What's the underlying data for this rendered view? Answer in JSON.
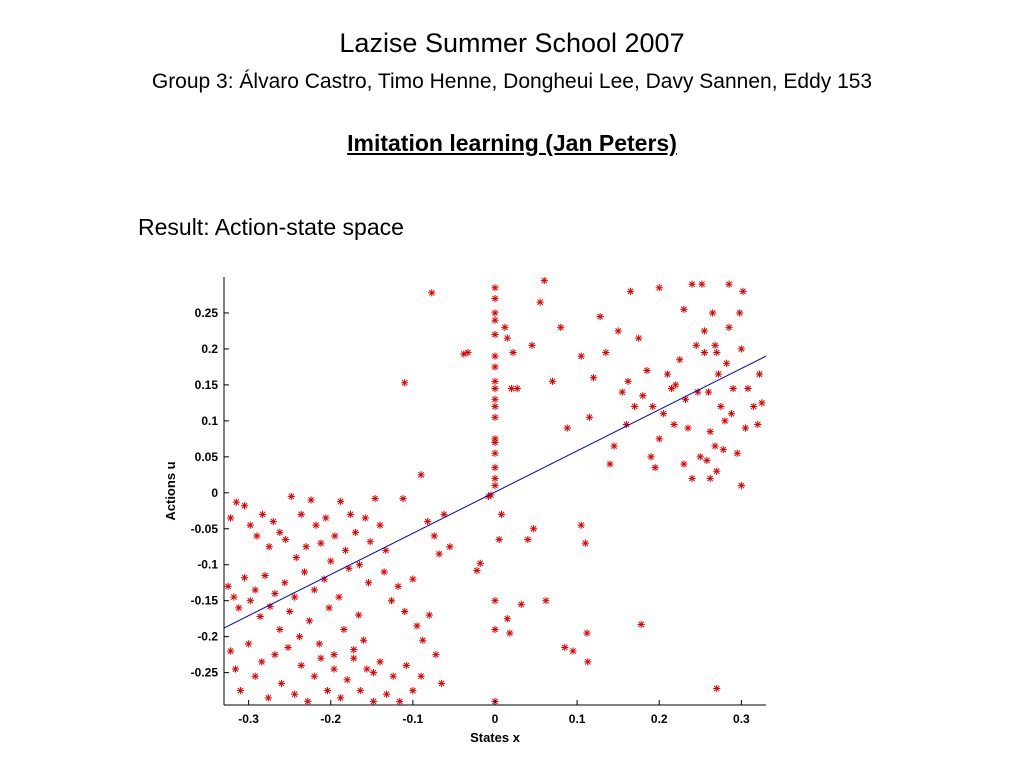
{
  "slide": {
    "title": "Lazise Summer School 2007",
    "subtitle": "Group 3: Álvaro Castro, Timo Henne, Dongheui Lee, Davy Sannen, Eddy 153",
    "heading": "Imitation learning (Jan Peters)",
    "result_label": "Result: Action-state space"
  },
  "chart_data": {
    "type": "scatter",
    "title": "",
    "xlabel": "States x",
    "ylabel": "Actions u",
    "xlim": [
      -0.33,
      0.33
    ],
    "ylim": [
      -0.295,
      0.3
    ],
    "x_ticks": [
      -0.3,
      -0.2,
      -0.1,
      0,
      0.1,
      0.2,
      0.3
    ],
    "x_tick_labels": [
      "-0.3",
      "-0.2",
      "-0.1",
      "0",
      "0.1",
      "0.2",
      "0.3"
    ],
    "y_ticks": [
      -0.25,
      -0.2,
      -0.15,
      -0.1,
      -0.05,
      0,
      0.05,
      0.1,
      0.15,
      0.2,
      0.25
    ],
    "y_tick_labels": [
      "-0.25",
      "-0.2",
      "-0.15",
      "-0.1",
      "-0.05",
      "0",
      "0.05",
      "0.1",
      "0.15",
      "0.2",
      "0.25"
    ],
    "grid": false,
    "colors": {
      "points": "#e00000",
      "fit_line": "#0000cc",
      "axes": "#000000"
    },
    "marker": "asterisk",
    "fit_line": {
      "x": [
        -0.33,
        0.33
      ],
      "y": [
        -0.188,
        0.19
      ]
    },
    "points": [
      [
        -0.322,
        -0.035
      ],
      [
        -0.315,
        -0.013
      ],
      [
        -0.305,
        -0.018
      ],
      [
        -0.298,
        -0.045
      ],
      [
        -0.29,
        -0.06
      ],
      [
        -0.283,
        -0.03
      ],
      [
        -0.275,
        -0.075
      ],
      [
        -0.27,
        -0.04
      ],
      [
        -0.262,
        -0.055
      ],
      [
        -0.255,
        -0.065
      ],
      [
        -0.248,
        -0.005
      ],
      [
        -0.242,
        -0.09
      ],
      [
        -0.236,
        -0.03
      ],
      [
        -0.23,
        -0.075
      ],
      [
        -0.224,
        -0.01
      ],
      [
        -0.218,
        -0.045
      ],
      [
        -0.212,
        -0.07
      ],
      [
        -0.206,
        -0.035
      ],
      [
        -0.2,
        -0.095
      ],
      [
        -0.195,
        -0.06
      ],
      [
        -0.188,
        -0.012
      ],
      [
        -0.182,
        -0.08
      ],
      [
        -0.176,
        -0.03
      ],
      [
        -0.17,
        -0.055
      ],
      [
        -0.165,
        -0.1
      ],
      [
        -0.158,
        -0.035
      ],
      [
        -0.152,
        -0.068
      ],
      [
        -0.146,
        -0.008
      ],
      [
        -0.14,
        -0.045
      ],
      [
        -0.133,
        -0.08
      ],
      [
        -0.325,
        -0.13
      ],
      [
        -0.318,
        -0.145
      ],
      [
        -0.312,
        -0.16
      ],
      [
        -0.305,
        -0.118
      ],
      [
        -0.298,
        -0.15
      ],
      [
        -0.292,
        -0.135
      ],
      [
        -0.286,
        -0.172
      ],
      [
        -0.28,
        -0.115
      ],
      [
        -0.274,
        -0.158
      ],
      [
        -0.268,
        -0.14
      ],
      [
        -0.262,
        -0.19
      ],
      [
        -0.256,
        -0.125
      ],
      [
        -0.25,
        -0.165
      ],
      [
        -0.244,
        -0.145
      ],
      [
        -0.238,
        -0.2
      ],
      [
        -0.232,
        -0.11
      ],
      [
        -0.226,
        -0.178
      ],
      [
        -0.22,
        -0.135
      ],
      [
        -0.214,
        -0.21
      ],
      [
        -0.208,
        -0.12
      ],
      [
        -0.202,
        -0.16
      ],
      [
        -0.196,
        -0.225
      ],
      [
        -0.19,
        -0.145
      ],
      [
        -0.184,
        -0.19
      ],
      [
        -0.178,
        -0.105
      ],
      [
        -0.172,
        -0.23
      ],
      [
        -0.166,
        -0.17
      ],
      [
        -0.16,
        -0.205
      ],
      [
        -0.154,
        -0.125
      ],
      [
        -0.148,
        -0.25
      ],
      [
        -0.322,
        -0.22
      ],
      [
        -0.316,
        -0.245
      ],
      [
        -0.31,
        -0.275
      ],
      [
        -0.3,
        -0.21
      ],
      [
        -0.292,
        -0.255
      ],
      [
        -0.284,
        -0.235
      ],
      [
        -0.276,
        -0.285
      ],
      [
        -0.268,
        -0.225
      ],
      [
        -0.26,
        -0.265
      ],
      [
        -0.252,
        -0.215
      ],
      [
        -0.244,
        -0.28
      ],
      [
        -0.236,
        -0.24
      ],
      [
        -0.228,
        -0.29
      ],
      [
        -0.22,
        -0.255
      ],
      [
        -0.212,
        -0.23
      ],
      [
        -0.204,
        -0.275
      ],
      [
        -0.196,
        -0.245
      ],
      [
        -0.188,
        -0.285
      ],
      [
        -0.18,
        -0.26
      ],
      [
        -0.172,
        -0.218
      ],
      [
        -0.164,
        -0.275
      ],
      [
        -0.156,
        -0.245
      ],
      [
        -0.148,
        -0.29
      ],
      [
        -0.14,
        -0.235
      ],
      [
        -0.132,
        -0.28
      ],
      [
        -0.124,
        -0.255
      ],
      [
        -0.116,
        -0.29
      ],
      [
        -0.108,
        -0.24
      ],
      [
        -0.1,
        -0.275
      ],
      [
        -0.09,
        -0.255
      ],
      [
        -0.135,
        -0.11
      ],
      [
        -0.126,
        -0.15
      ],
      [
        -0.118,
        -0.13
      ],
      [
        -0.11,
        -0.165
      ],
      [
        -0.1,
        -0.12
      ],
      [
        -0.095,
        -0.185
      ],
      [
        -0.088,
        -0.205
      ],
      [
        -0.08,
        -0.17
      ],
      [
        -0.072,
        -0.225
      ],
      [
        -0.065,
        -0.265
      ],
      [
        -0.082,
        -0.04
      ],
      [
        -0.074,
        -0.06
      ],
      [
        -0.068,
        -0.085
      ],
      [
        -0.062,
        -0.03
      ],
      [
        -0.055,
        -0.075
      ],
      [
        -0.112,
        -0.008
      ],
      [
        -0.09,
        0.025
      ],
      [
        -0.11,
        0.153
      ],
      [
        -0.077,
        0.278
      ],
      [
        -0.038,
        0.193
      ],
      [
        -0.033,
        0.195
      ],
      [
        -0.022,
        -0.108
      ],
      [
        -0.018,
        -0.098
      ],
      [
        -0.008,
        -0.005
      ],
      [
        -0.005,
        -0.003
      ],
      [
        0,
        0.285
      ],
      [
        0,
        0.27
      ],
      [
        0,
        0.25
      ],
      [
        0,
        0.24
      ],
      [
        0,
        0.22
      ],
      [
        0,
        0.19
      ],
      [
        0,
        0.175
      ],
      [
        0,
        0.155
      ],
      [
        0,
        0.145
      ],
      [
        0,
        0.13
      ],
      [
        0,
        0.12
      ],
      [
        0,
        0.105
      ],
      [
        0,
        0.075
      ],
      [
        0,
        0.07
      ],
      [
        0,
        0.055
      ],
      [
        0,
        0.035
      ],
      [
        0,
        0.02
      ],
      [
        0,
        0.01
      ],
      [
        0,
        -0.15
      ],
      [
        0,
        -0.19
      ],
      [
        0,
        -0.29
      ],
      [
        0.005,
        -0.065
      ],
      [
        0.008,
        -0.03
      ],
      [
        0.012,
        0.23
      ],
      [
        0.015,
        0.215
      ],
      [
        0.02,
        0.145
      ],
      [
        0.022,
        0.195
      ],
      [
        0.027,
        0.145
      ],
      [
        0.018,
        -0.195
      ],
      [
        0.015,
        -0.175
      ],
      [
        0.032,
        -0.155
      ],
      [
        0.04,
        -0.065
      ],
      [
        0.045,
        0.205
      ],
      [
        0.047,
        -0.05
      ],
      [
        0.055,
        0.265
      ],
      [
        0.06,
        0.295
      ],
      [
        0.062,
        -0.15
      ],
      [
        0.07,
        0.155
      ],
      [
        0.08,
        0.23
      ],
      [
        0.088,
        0.09
      ],
      [
        0.085,
        -0.215
      ],
      [
        0.095,
        -0.22
      ],
      [
        0.105,
        0.19
      ],
      [
        0.105,
        -0.045
      ],
      [
        0.11,
        -0.07
      ],
      [
        0.112,
        -0.195
      ],
      [
        0.113,
        -0.235
      ],
      [
        0.115,
        0.105
      ],
      [
        0.12,
        0.16
      ],
      [
        0.128,
        0.245
      ],
      [
        0.135,
        0.195
      ],
      [
        0.14,
        0.04
      ],
      [
        0.145,
        0.065
      ],
      [
        0.15,
        0.225
      ],
      [
        0.155,
        0.14
      ],
      [
        0.16,
        0.095
      ],
      [
        0.162,
        0.155
      ],
      [
        0.165,
        0.28
      ],
      [
        0.17,
        0.12
      ],
      [
        0.175,
        0.215
      ],
      [
        0.178,
        -0.183
      ],
      [
        0.18,
        0.135
      ],
      [
        0.185,
        0.17
      ],
      [
        0.19,
        0.05
      ],
      [
        0.192,
        0.12
      ],
      [
        0.195,
        0.035
      ],
      [
        0.2,
        0.075
      ],
      [
        0.205,
        0.11
      ],
      [
        0.21,
        0.165
      ],
      [
        0.215,
        0.145
      ],
      [
        0.22,
        0.15
      ],
      [
        0.225,
        0.185
      ],
      [
        0.23,
        0.255
      ],
      [
        0.232,
        0.13
      ],
      [
        0.235,
        0.09
      ],
      [
        0.24,
        0.02
      ],
      [
        0.245,
        0.205
      ],
      [
        0.25,
        0.05
      ],
      [
        0.252,
        0.29
      ],
      [
        0.255,
        0.195
      ],
      [
        0.26,
        0.14
      ],
      [
        0.262,
        0.085
      ],
      [
        0.265,
        0.25
      ],
      [
        0.268,
        0.205
      ],
      [
        0.27,
        0.03
      ],
      [
        0.272,
        0.165
      ],
      [
        0.275,
        0.12
      ],
      [
        0.278,
        0.06
      ],
      [
        0.28,
        0.1
      ],
      [
        0.282,
        0.18
      ],
      [
        0.285,
        0.23
      ],
      [
        0.288,
        0.11
      ],
      [
        0.29,
        0.145
      ],
      [
        0.295,
        0.055
      ],
      [
        0.298,
        0.25
      ],
      [
        0.3,
        0.01
      ],
      [
        0.302,
        0.28
      ],
      [
        0.305,
        0.09
      ],
      [
        0.308,
        0.145
      ],
      [
        0.315,
        0.12
      ],
      [
        0.32,
        0.095
      ],
      [
        0.322,
        0.165
      ],
      [
        0.325,
        0.125
      ],
      [
        0.27,
        -0.272
      ],
      [
        0.2,
        0.285
      ],
      [
        0.24,
        0.29
      ],
      [
        0.255,
        0.225
      ],
      [
        0.262,
        0.02
      ],
      [
        0.23,
        0.04
      ],
      [
        0.218,
        0.095
      ],
      [
        0.285,
        0.29
      ],
      [
        0.27,
        0.195
      ],
      [
        0.247,
        0.14
      ],
      [
        0.258,
        0.045
      ],
      [
        0.268,
        0.065
      ],
      [
        0.3,
        0.2
      ]
    ]
  }
}
